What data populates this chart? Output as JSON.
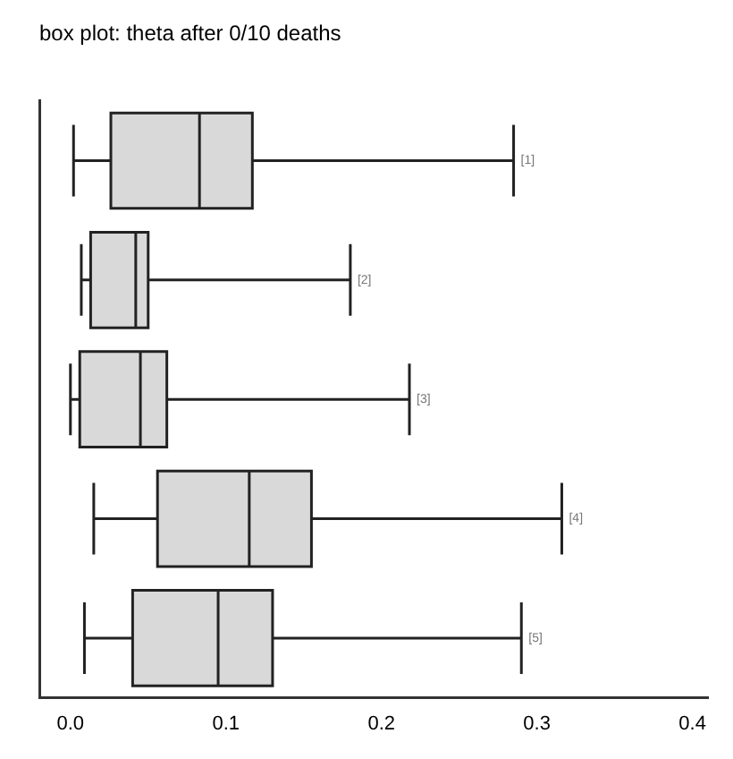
{
  "chart_data": {
    "type": "box",
    "orientation": "horizontal",
    "title": "box plot: theta after 0/10 deaths",
    "categories": [
      "[1]",
      "[2]",
      "[3]",
      "[4]",
      "[5]"
    ],
    "color": "#d9d9d9",
    "boxes": [
      {
        "low": 0.002,
        "q1": 0.026,
        "median": 0.083,
        "q3": 0.117,
        "high": 0.285
      },
      {
        "low": 0.007,
        "q1": 0.013,
        "median": 0.042,
        "q3": 0.05,
        "high": 0.18
      },
      {
        "low": 0.0,
        "q1": 0.006,
        "median": 0.045,
        "q3": 0.062,
        "high": 0.218
      },
      {
        "low": 0.015,
        "q1": 0.056,
        "median": 0.115,
        "q3": 0.155,
        "high": 0.316
      },
      {
        "low": 0.009,
        "q1": 0.04,
        "median": 0.095,
        "q3": 0.13,
        "high": 0.29
      }
    ],
    "xlim": [
      -0.02,
      0.41
    ],
    "xticks": [
      {
        "value": 0,
        "label": "0.0"
      },
      0.1,
      0.2,
      0.3,
      0.4
    ],
    "grid": false,
    "legend": false
  }
}
